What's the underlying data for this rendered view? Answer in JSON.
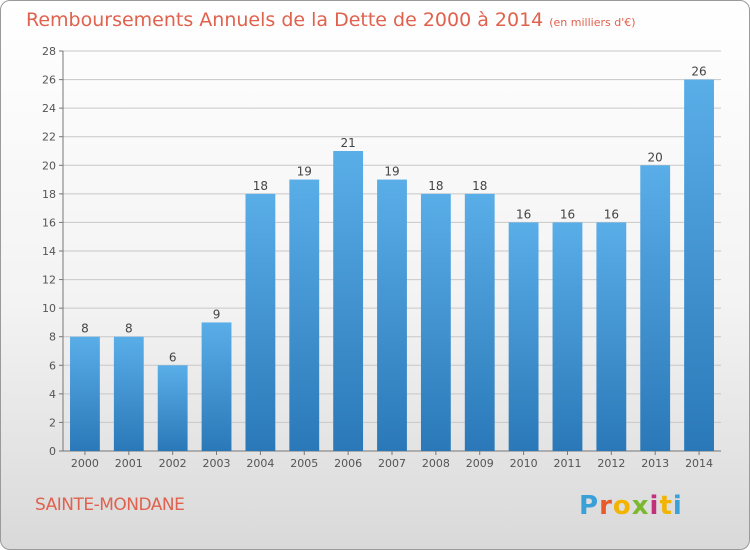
{
  "header": {
    "title": "Remboursements Annuels de la Dette de 2000 à 2014",
    "unit": "(en milliers d'€)"
  },
  "footer": {
    "city": "SAINTE-MONDANE",
    "logo": "Proxiti"
  },
  "colors": {
    "title": "#e0614d",
    "bar_top": "#5aaee8",
    "bar_bottom": "#2a78b8",
    "grid": "#c8c8c8"
  },
  "chart_data": {
    "type": "bar",
    "title": "Remboursements Annuels de la Dette de 2000 à 2014",
    "xlabel": "",
    "ylabel": "",
    "categories": [
      "2000",
      "2001",
      "2002",
      "2003",
      "2004",
      "2005",
      "2006",
      "2007",
      "2008",
      "2009",
      "2010",
      "2011",
      "2012",
      "2013",
      "2014"
    ],
    "values": [
      8,
      8,
      6,
      9,
      18,
      19,
      21,
      19,
      18,
      18,
      16,
      16,
      16,
      20,
      26
    ],
    "ylim": [
      0,
      28
    ],
    "yticks": [
      0,
      2,
      4,
      6,
      8,
      10,
      12,
      14,
      16,
      18,
      20,
      22,
      24,
      26,
      28
    ],
    "grid": true,
    "data_labels": true
  }
}
